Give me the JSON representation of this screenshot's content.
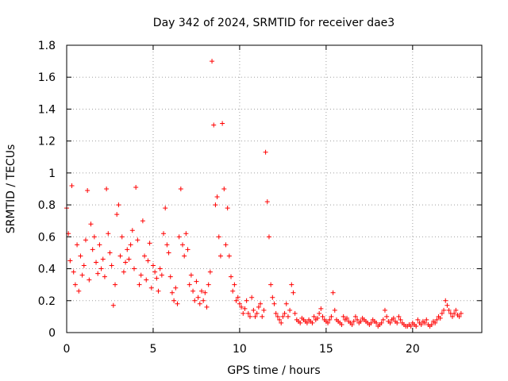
{
  "chart_data": {
    "type": "scatter",
    "title": "Day 342 of 2024, SRMTID for receiver dae3",
    "xlabel": "GPS time / hours",
    "ylabel": "SRMTID / TECUs",
    "xlim": [
      0,
      24
    ],
    "ylim": [
      0,
      1.8
    ],
    "xticks": [
      0,
      5,
      10,
      15,
      20
    ],
    "xtick_labels": [
      "0",
      "5",
      "10",
      "15",
      "20"
    ],
    "yticks": [
      0,
      0.2,
      0.4,
      0.6,
      0.8,
      1,
      1.2,
      1.4,
      1.6,
      1.8
    ],
    "ytick_labels": [
      "0",
      "0.2",
      "0.4",
      "0.6",
      "0.8",
      "1",
      "1.2",
      "1.4",
      "1.6",
      "1.8"
    ],
    "grid": true,
    "marker": "+",
    "color": "#ff0000",
    "series": [
      {
        "name": "SRMTID",
        "x": [
          0.0,
          0.1,
          0.2,
          0.3,
          0.4,
          0.5,
          0.6,
          0.7,
          0.8,
          0.9,
          1.0,
          1.1,
          1.2,
          1.3,
          1.4,
          1.5,
          1.6,
          1.7,
          1.8,
          1.9,
          2.0,
          2.1,
          2.2,
          2.3,
          2.4,
          2.5,
          2.6,
          2.7,
          2.8,
          2.9,
          3.0,
          3.1,
          3.2,
          3.3,
          3.4,
          3.5,
          3.6,
          3.7,
          3.8,
          3.9,
          4.0,
          4.1,
          4.2,
          4.3,
          4.4,
          4.5,
          4.6,
          4.7,
          4.8,
          4.9,
          5.0,
          5.1,
          5.2,
          5.3,
          5.4,
          5.5,
          5.6,
          5.7,
          5.8,
          5.9,
          6.0,
          6.1,
          6.2,
          6.3,
          6.4,
          6.5,
          6.6,
          6.7,
          6.8,
          6.9,
          7.0,
          7.1,
          7.2,
          7.3,
          7.4,
          7.5,
          7.6,
          7.7,
          7.8,
          7.9,
          8.0,
          8.1,
          8.2,
          8.3,
          8.4,
          8.5,
          8.6,
          8.7,
          8.8,
          8.9,
          9.0,
          9.1,
          9.2,
          9.3,
          9.4,
          9.5,
          9.6,
          9.7,
          9.8,
          9.9,
          10.0,
          10.1,
          10.2,
          10.3,
          10.4,
          10.5,
          10.6,
          10.7,
          10.8,
          10.9,
          11.0,
          11.1,
          11.2,
          11.3,
          11.4,
          11.5,
          11.6,
          11.7,
          11.8,
          11.9,
          12.0,
          12.1,
          12.2,
          12.3,
          12.4,
          12.5,
          12.6,
          12.7,
          12.8,
          12.9,
          13.0,
          13.1,
          13.2,
          13.3,
          13.4,
          13.5,
          13.6,
          13.7,
          13.8,
          13.9,
          14.0,
          14.1,
          14.2,
          14.3,
          14.4,
          14.5,
          14.6,
          14.7,
          14.8,
          14.9,
          15.0,
          15.1,
          15.2,
          15.3,
          15.4,
          15.5,
          15.6,
          15.7,
          15.8,
          15.9,
          16.0,
          16.1,
          16.2,
          16.3,
          16.4,
          16.5,
          16.6,
          16.7,
          16.8,
          16.9,
          17.0,
          17.1,
          17.2,
          17.3,
          17.4,
          17.5,
          17.6,
          17.7,
          17.8,
          17.9,
          18.0,
          18.1,
          18.2,
          18.3,
          18.4,
          18.5,
          18.6,
          18.7,
          18.8,
          18.9,
          19.0,
          19.1,
          19.2,
          19.3,
          19.4,
          19.5,
          19.6,
          19.7,
          19.8,
          19.9,
          20.0,
          20.1,
          20.2,
          20.3,
          20.4,
          20.5,
          20.6,
          20.7,
          20.8,
          20.9,
          21.0,
          21.1,
          21.2,
          21.3,
          21.4,
          21.5,
          21.6,
          21.7,
          21.8,
          21.9,
          22.0,
          22.1,
          22.2,
          22.3,
          22.4,
          22.5,
          22.6,
          22.7,
          22.8
        ],
        "y": [
          0.78,
          0.62,
          0.45,
          0.92,
          0.38,
          0.3,
          0.55,
          0.26,
          0.48,
          0.36,
          0.42,
          0.58,
          0.89,
          0.33,
          0.68,
          0.52,
          0.6,
          0.44,
          0.37,
          0.55,
          0.4,
          0.46,
          0.35,
          0.9,
          0.62,
          0.5,
          0.42,
          0.17,
          0.3,
          0.74,
          0.8,
          0.48,
          0.6,
          0.38,
          0.44,
          0.52,
          0.46,
          0.55,
          0.64,
          0.4,
          0.91,
          0.58,
          0.3,
          0.36,
          0.7,
          0.48,
          0.33,
          0.45,
          0.56,
          0.28,
          0.42,
          0.38,
          0.34,
          0.26,
          0.4,
          0.36,
          0.62,
          0.78,
          0.55,
          0.5,
          0.35,
          0.25,
          0.2,
          0.28,
          0.18,
          0.6,
          0.9,
          0.55,
          0.48,
          0.62,
          0.52,
          0.3,
          0.36,
          0.26,
          0.2,
          0.32,
          0.22,
          0.18,
          0.26,
          0.2,
          0.25,
          0.16,
          0.3,
          0.38,
          1.7,
          1.3,
          0.8,
          0.85,
          0.6,
          0.48,
          1.31,
          0.9,
          0.55,
          0.78,
          0.48,
          0.35,
          0.26,
          0.3,
          0.2,
          0.22,
          0.18,
          0.16,
          0.12,
          0.15,
          0.2,
          0.12,
          0.1,
          0.22,
          0.14,
          0.1,
          0.12,
          0.16,
          0.18,
          0.1,
          0.14,
          1.13,
          0.82,
          0.6,
          0.3,
          0.22,
          0.18,
          0.12,
          0.1,
          0.08,
          0.06,
          0.1,
          0.12,
          0.18,
          0.1,
          0.14,
          0.3,
          0.25,
          0.12,
          0.08,
          0.07,
          0.06,
          0.09,
          0.08,
          0.07,
          0.06,
          0.08,
          0.07,
          0.06,
          0.1,
          0.08,
          0.09,
          0.12,
          0.15,
          0.1,
          0.08,
          0.07,
          0.06,
          0.08,
          0.1,
          0.25,
          0.14,
          0.08,
          0.07,
          0.06,
          0.05,
          0.1,
          0.08,
          0.09,
          0.07,
          0.06,
          0.05,
          0.07,
          0.1,
          0.08,
          0.06,
          0.07,
          0.09,
          0.08,
          0.07,
          0.06,
          0.05,
          0.06,
          0.08,
          0.07,
          0.06,
          0.04,
          0.05,
          0.06,
          0.08,
          0.14,
          0.1,
          0.07,
          0.06,
          0.08,
          0.09,
          0.07,
          0.06,
          0.1,
          0.08,
          0.06,
          0.05,
          0.04,
          0.04,
          0.05,
          0.04,
          0.06,
          0.05,
          0.04,
          0.08,
          0.06,
          0.05,
          0.07,
          0.06,
          0.08,
          0.05,
          0.04,
          0.05,
          0.07,
          0.06,
          0.08,
          0.1,
          0.09,
          0.12,
          0.14,
          0.2,
          0.17,
          0.14,
          0.12,
          0.1,
          0.12,
          0.14,
          0.11,
          0.1,
          0.12
        ]
      }
    ]
  }
}
